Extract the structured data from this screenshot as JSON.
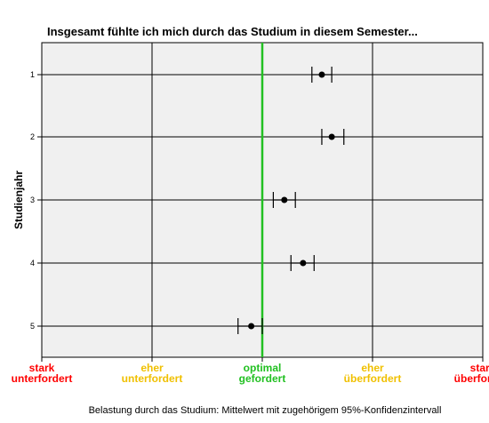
{
  "chart_data": {
    "type": "scatter",
    "title": "Insgesamt fühlte ich mich durch das Studium in diesem Semester...",
    "ylabel": "Studienjahr",
    "xlabel": "Belastung durch das Studium: Mittelwert mit zugehörigem 95%-Konfidenzintervall",
    "xlim": [
      1,
      5
    ],
    "grid": true,
    "reference_line": {
      "x": 3,
      "color": "#22c022"
    },
    "x_ticks": [
      {
        "value": 1,
        "lines": [
          "stark",
          "unterfordert"
        ],
        "color": "#ff0000"
      },
      {
        "value": 2,
        "lines": [
          "eher",
          "unterfordert"
        ],
        "color": "#f0c000"
      },
      {
        "value": 3,
        "lines": [
          "optimal",
          "gefordert"
        ],
        "color": "#22c022"
      },
      {
        "value": 4,
        "lines": [
          "eher",
          "überfordert"
        ],
        "color": "#f0c000"
      },
      {
        "value": 5,
        "lines": [
          "stark",
          "überfordert"
        ],
        "color": "#ff0000"
      }
    ],
    "categories": [
      "1",
      "2",
      "3",
      "4",
      "5"
    ],
    "means": [
      3.54,
      3.63,
      3.2,
      3.37,
      2.9
    ],
    "ci_low": [
      3.45,
      3.54,
      3.1,
      3.26,
      2.78
    ],
    "ci_high": [
      3.63,
      3.74,
      3.3,
      3.47,
      3.0
    ]
  }
}
